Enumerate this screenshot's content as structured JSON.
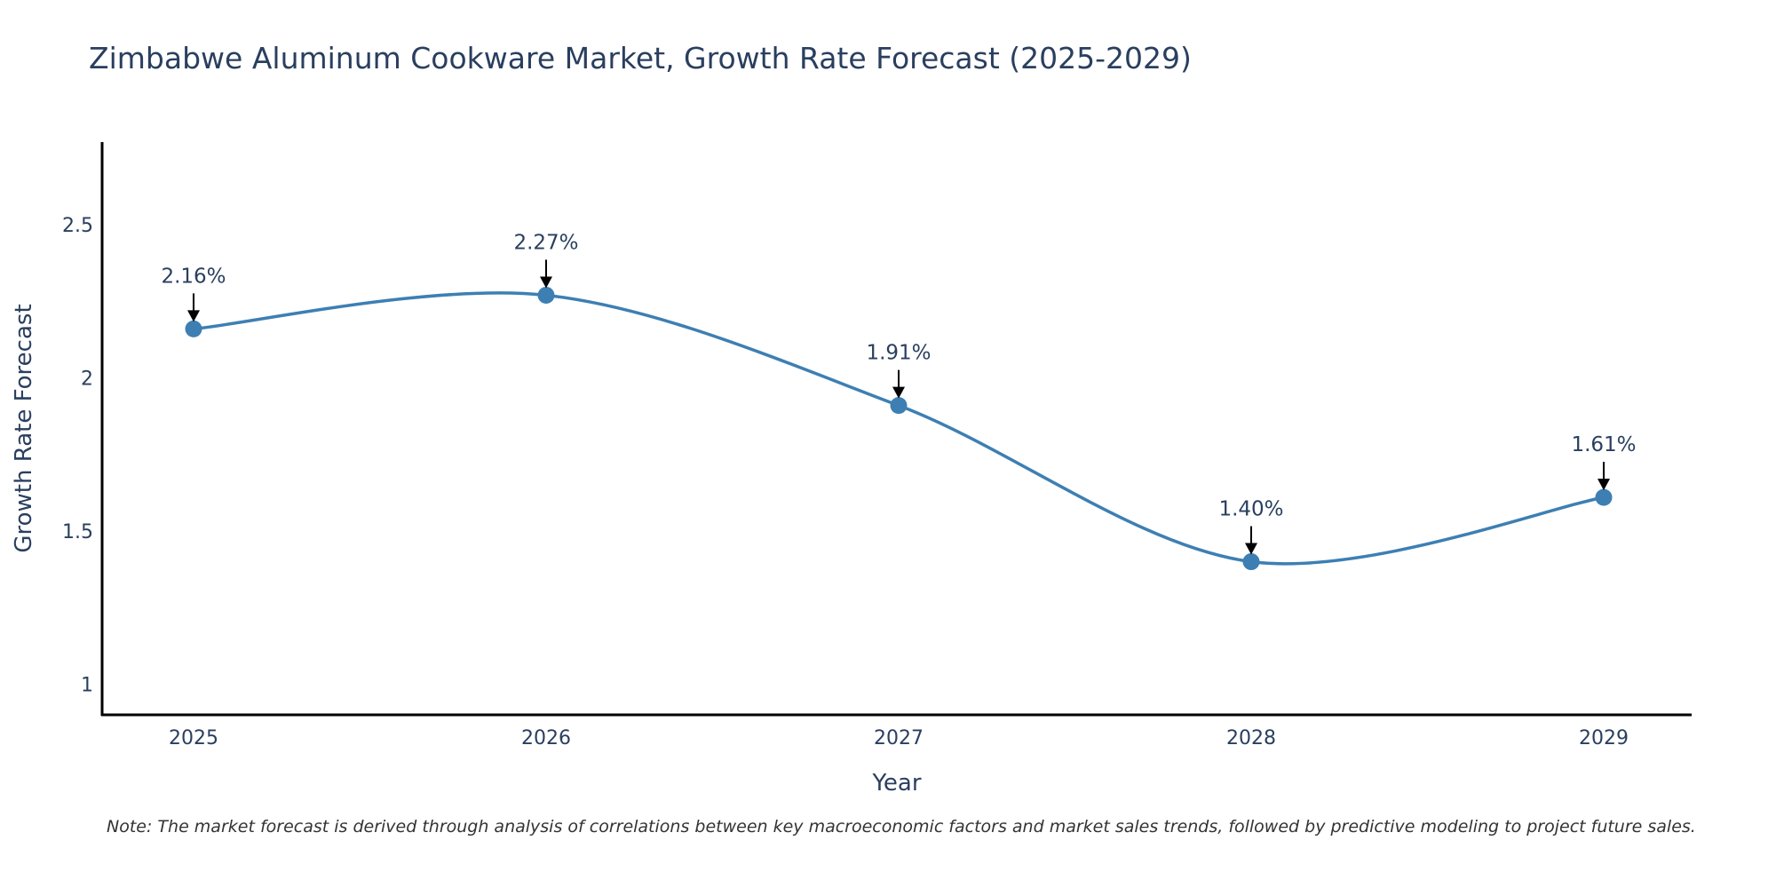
{
  "chart_data": {
    "type": "line",
    "title": "Zimbabwe Aluminum Cookware Market, Growth Rate Forecast (2025-2029)",
    "xlabel": "Year",
    "ylabel": "Growth Rate Forecast",
    "categories": [
      "2025",
      "2026",
      "2027",
      "2028",
      "2029"
    ],
    "values": [
      2.16,
      2.27,
      1.91,
      1.4,
      1.61
    ],
    "data_labels": [
      "2.16%",
      "2.27%",
      "1.91%",
      "1.40%",
      "1.61%"
    ],
    "y_ticks": [
      1,
      1.5,
      2,
      2.5
    ],
    "y_tick_labels": [
      "1",
      "1.5",
      "2",
      "2.5"
    ],
    "ylim": [
      0.9,
      2.77
    ],
    "line_color": "#3d7fb3",
    "marker_color": "#3d7fb3",
    "arrow_color": "#000000",
    "grid": false
  },
  "note": "Note: The market forecast is derived through analysis of correlations between key macroeconomic factors and market sales trends, followed by predictive modeling to project future sales."
}
